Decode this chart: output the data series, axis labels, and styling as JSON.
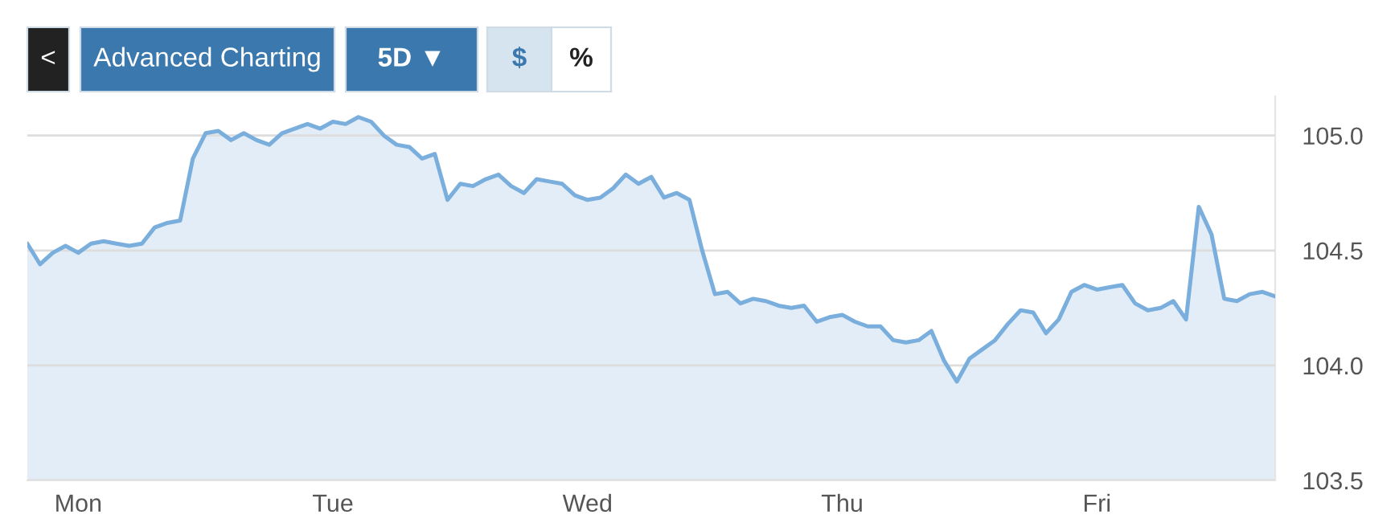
{
  "chart_data": {
    "type": "area",
    "annotations": [
      "<",
      "Advanced Charting",
      "5D ▼",
      "$",
      "%"
    ],
    "categories": [
      null,
      null,
      null,
      null,
      "Mon",
      null,
      null,
      null,
      null,
      null,
      null,
      null,
      null,
      null,
      null,
      null,
      null,
      null,
      null,
      null,
      null,
      null,
      null,
      null,
      "Tue",
      null,
      null,
      null,
      null,
      null,
      null,
      null,
      null,
      null,
      null,
      null,
      null,
      null,
      null,
      null,
      null,
      null,
      null,
      null,
      "Wed",
      null,
      null,
      null,
      null,
      null,
      null,
      null,
      null,
      null,
      null,
      null,
      null,
      null,
      null,
      null,
      null,
      null,
      null,
      null,
      "Thu",
      null,
      null,
      null,
      null,
      null,
      null,
      null,
      null,
      null,
      null,
      null,
      null,
      null,
      null,
      null,
      null,
      null,
      null,
      null,
      "Fri",
      null,
      null,
      null,
      null,
      null,
      null,
      null,
      null,
      null,
      null,
      null,
      null,
      null,
      null
    ],
    "series": [
      {
        "color": "#7aaedc",
        "values": [
          104.53,
          104.44,
          104.49,
          104.52,
          104.49,
          104.53,
          104.54,
          104.53,
          104.52,
          104.53,
          104.6,
          104.62,
          104.63,
          104.9,
          105.01,
          105.02,
          104.98,
          105.01,
          104.98,
          104.96,
          105.01,
          105.03,
          105.05,
          105.03,
          105.06,
          105.05,
          105.08,
          105.06,
          105.0,
          104.96,
          104.95,
          104.9,
          104.92,
          104.72,
          104.79,
          104.78,
          104.81,
          104.83,
          104.78,
          104.75,
          104.81,
          104.8,
          104.79,
          104.74,
          104.72,
          104.73,
          104.77,
          104.83,
          104.79,
          104.82,
          104.73,
          104.75,
          104.72,
          104.5,
          104.31,
          104.32,
          104.27,
          104.29,
          104.28,
          104.26,
          104.25,
          104.26,
          104.19,
          104.21,
          104.22,
          104.19,
          104.17,
          104.17,
          104.11,
          104.1,
          104.11,
          104.15,
          104.02,
          103.93,
          104.03,
          104.07,
          104.11,
          104.18,
          104.24,
          104.23,
          104.14,
          104.2,
          104.32,
          104.35,
          104.33,
          104.34,
          104.35,
          104.27,
          104.24,
          104.25,
          104.28,
          104.2,
          104.69,
          104.57,
          104.29,
          104.28,
          104.31,
          104.32,
          104.3
        ]
      }
    ],
    "ylim": [
      103.5,
      105.17
    ],
    "yticks": [
      103.5,
      {
        "value": 104,
        "label": "104.0"
      },
      104.5,
      {
        "value": 105,
        "label": "105.0"
      }
    ],
    "grid": "y"
  }
}
